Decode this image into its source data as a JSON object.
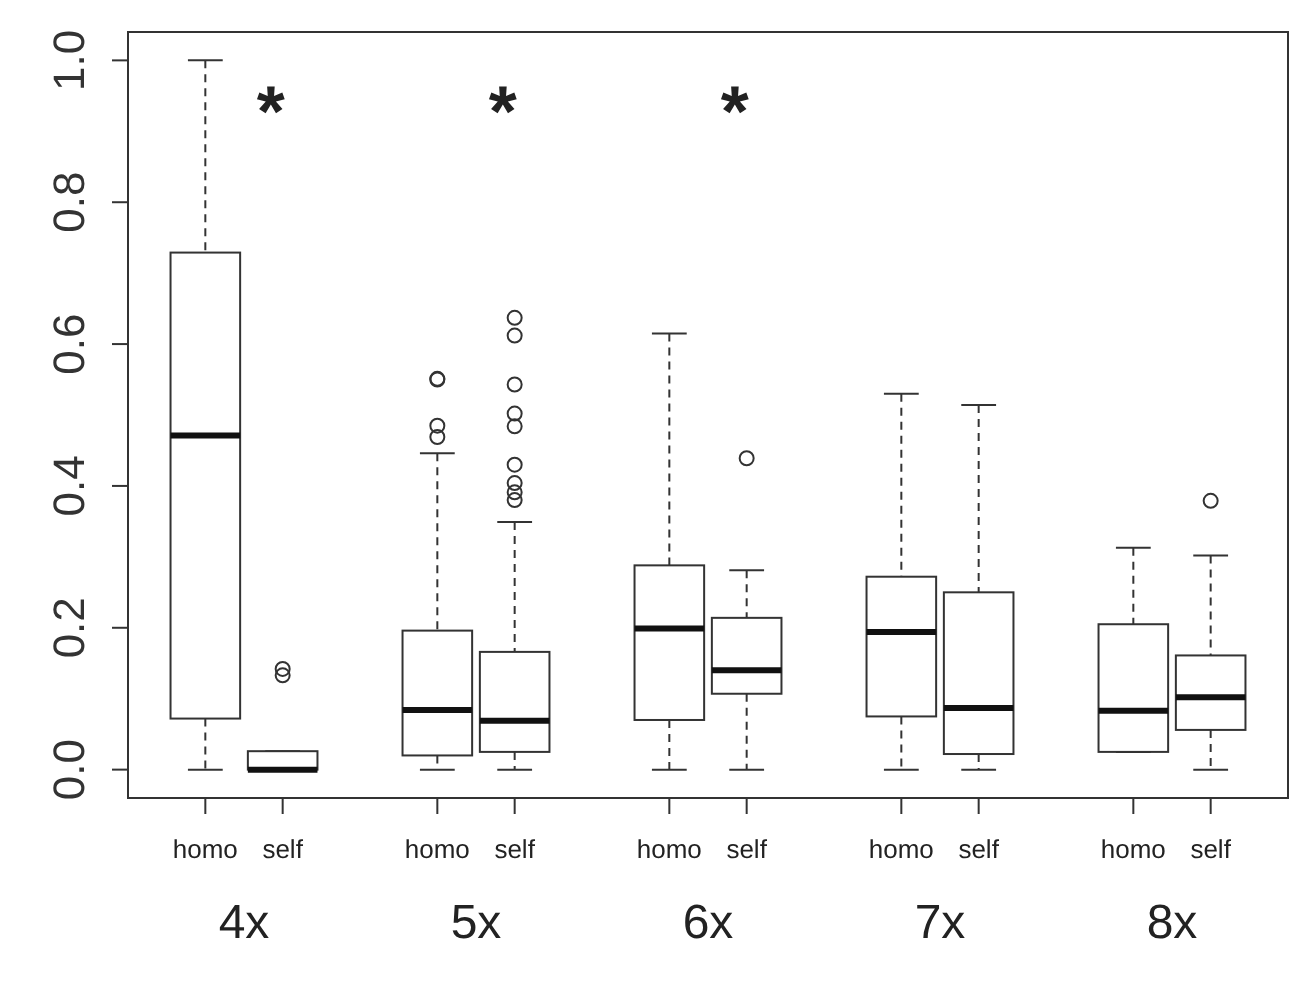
{
  "chart_data": {
    "type": "box",
    "categories": [
      "homo",
      "self",
      null,
      "homo",
      "self",
      null,
      "homo",
      "self",
      null,
      "homo",
      "self",
      null,
      "homo",
      "self"
    ],
    "boxes": [
      {
        "low": 0,
        "q1": 0.072,
        "median": 0.471,
        "q3": 0.729,
        "high": 1.0
      },
      {
        "low": 0,
        "q1": 0,
        "median": 0,
        "q3": 0.026,
        "high": 0.026,
        "outliers": [
          0.142,
          0.133
        ]
      },
      null,
      {
        "low": 0,
        "q1": 0.02,
        "median": 0.084,
        "q3": 0.196,
        "high": 0.446,
        "outliers": [
          0.469,
          0.485,
          0.55,
          0.551
        ]
      },
      {
        "low": 0,
        "q1": 0.025,
        "median": 0.069,
        "q3": 0.166,
        "high": 0.349,
        "outliers": [
          0.38,
          0.391,
          0.404,
          0.43,
          0.484,
          0.502,
          0.543,
          0.612,
          0.637
        ]
      },
      null,
      {
        "low": 0,
        "q1": 0.07,
        "median": 0.199,
        "q3": 0.288,
        "high": 0.615
      },
      {
        "low": 0,
        "q1": 0.107,
        "median": 0.14,
        "q3": 0.214,
        "high": 0.281,
        "outliers": [
          0.439
        ]
      },
      null,
      {
        "low": 0,
        "q1": 0.075,
        "median": 0.194,
        "q3": 0.272,
        "high": 0.53
      },
      {
        "low": 0,
        "q1": 0.022,
        "median": 0.087,
        "q3": 0.25,
        "high": 0.514
      },
      null,
      {
        "low": 0.025,
        "q1": 0.025,
        "median": 0.083,
        "q3": 0.205,
        "high": 0.313
      },
      {
        "low": 0,
        "q1": 0.056,
        "median": 0.102,
        "q3": 0.161,
        "high": 0.302,
        "outliers": [
          0.379
        ]
      }
    ],
    "ylim": [
      -0.04,
      1.04
    ],
    "yticks": [
      {
        "value": 0,
        "label": "0.0"
      },
      {
        "value": 0.2,
        "label": "0.2"
      },
      {
        "value": 0.4,
        "label": "0.4"
      },
      {
        "value": 0.6,
        "label": "0.6"
      },
      {
        "value": 0.8,
        "label": "0.8"
      },
      {
        "value": 1.0,
        "label": "1.0"
      }
    ],
    "grid": false,
    "legend": false,
    "annotations": [
      "*",
      "*",
      "*",
      "4x",
      "5x",
      "6x",
      "7x",
      "8x"
    ]
  }
}
